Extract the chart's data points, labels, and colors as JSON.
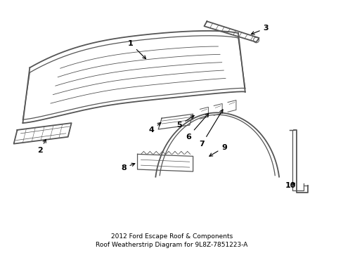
{
  "bg_color": "#ffffff",
  "line_color": "#555555",
  "text_color": "#000000",
  "label_fontsize": 8,
  "title": "2012 Ford Escape Roof & Components\nRoof Weatherstrip Diagram for 9L8Z-7851223-A",
  "title_fontsize": 6.5
}
